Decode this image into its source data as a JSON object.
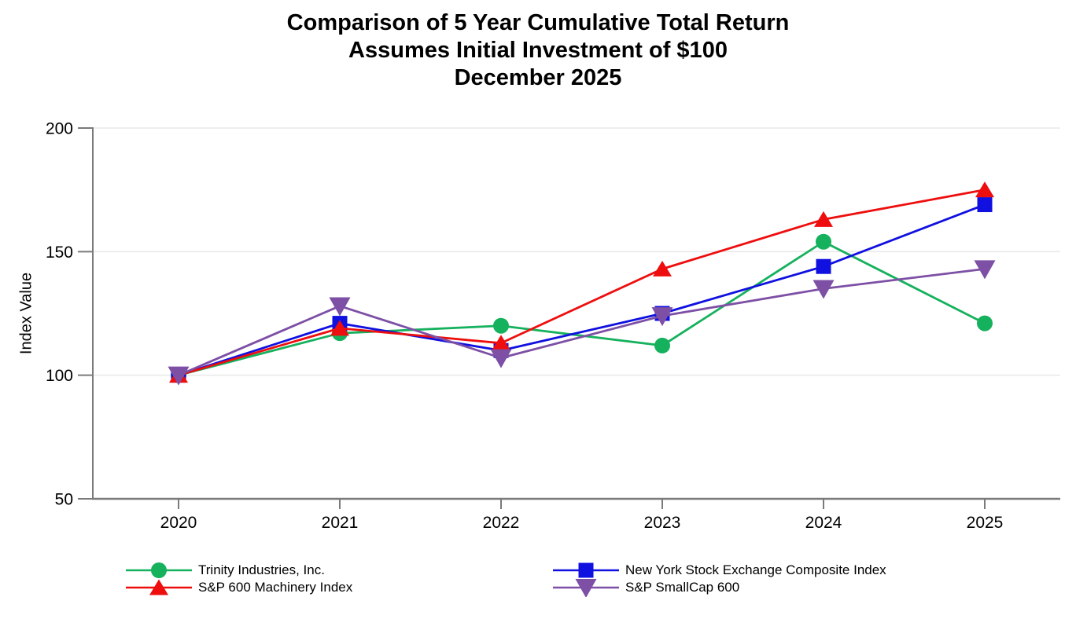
{
  "title": {
    "line1": "Comparison of 5 Year Cumulative Total Return",
    "line2": "Assumes Initial Investment of $100",
    "line3": "December 2025"
  },
  "chart_data": {
    "type": "line",
    "title": "Comparison of 5 Year Cumulative Total Return Assumes Initial Investment of $100 December 2025",
    "xlabel": "",
    "ylabel": "Index Value",
    "ylim": [
      50,
      200
    ],
    "yticks": [
      50,
      100,
      150,
      200
    ],
    "x_labels": [
      "2020",
      "2021",
      "2022",
      "2023",
      "2024",
      "2025"
    ],
    "grid": "horizontal-light",
    "legend_position": "bottom, two columns",
    "series": [
      {
        "name": "Trinity Industries, Inc.",
        "marker": "circle",
        "color": "#15B15D",
        "values": [
          100,
          117,
          120,
          112,
          154,
          121
        ]
      },
      {
        "name": "New York Stock Exchange Composite Index",
        "marker": "square",
        "color": "#1010E0",
        "values": [
          100,
          121,
          110,
          125,
          144,
          169
        ]
      },
      {
        "name": "S&P 600 Machinery Index",
        "marker": "triangle-up",
        "color": "#EE0E0E",
        "values": [
          100,
          119,
          113,
          143,
          163,
          175
        ]
      },
      {
        "name": "S&P SmallCap 600",
        "marker": "triangle-down",
        "color": "#7D4FA5",
        "values": [
          100,
          128,
          107,
          124,
          135,
          143
        ]
      }
    ]
  },
  "colors": {
    "axis": "#7a7a7a",
    "grid": "#e9e9e9",
    "text": "#000000"
  }
}
